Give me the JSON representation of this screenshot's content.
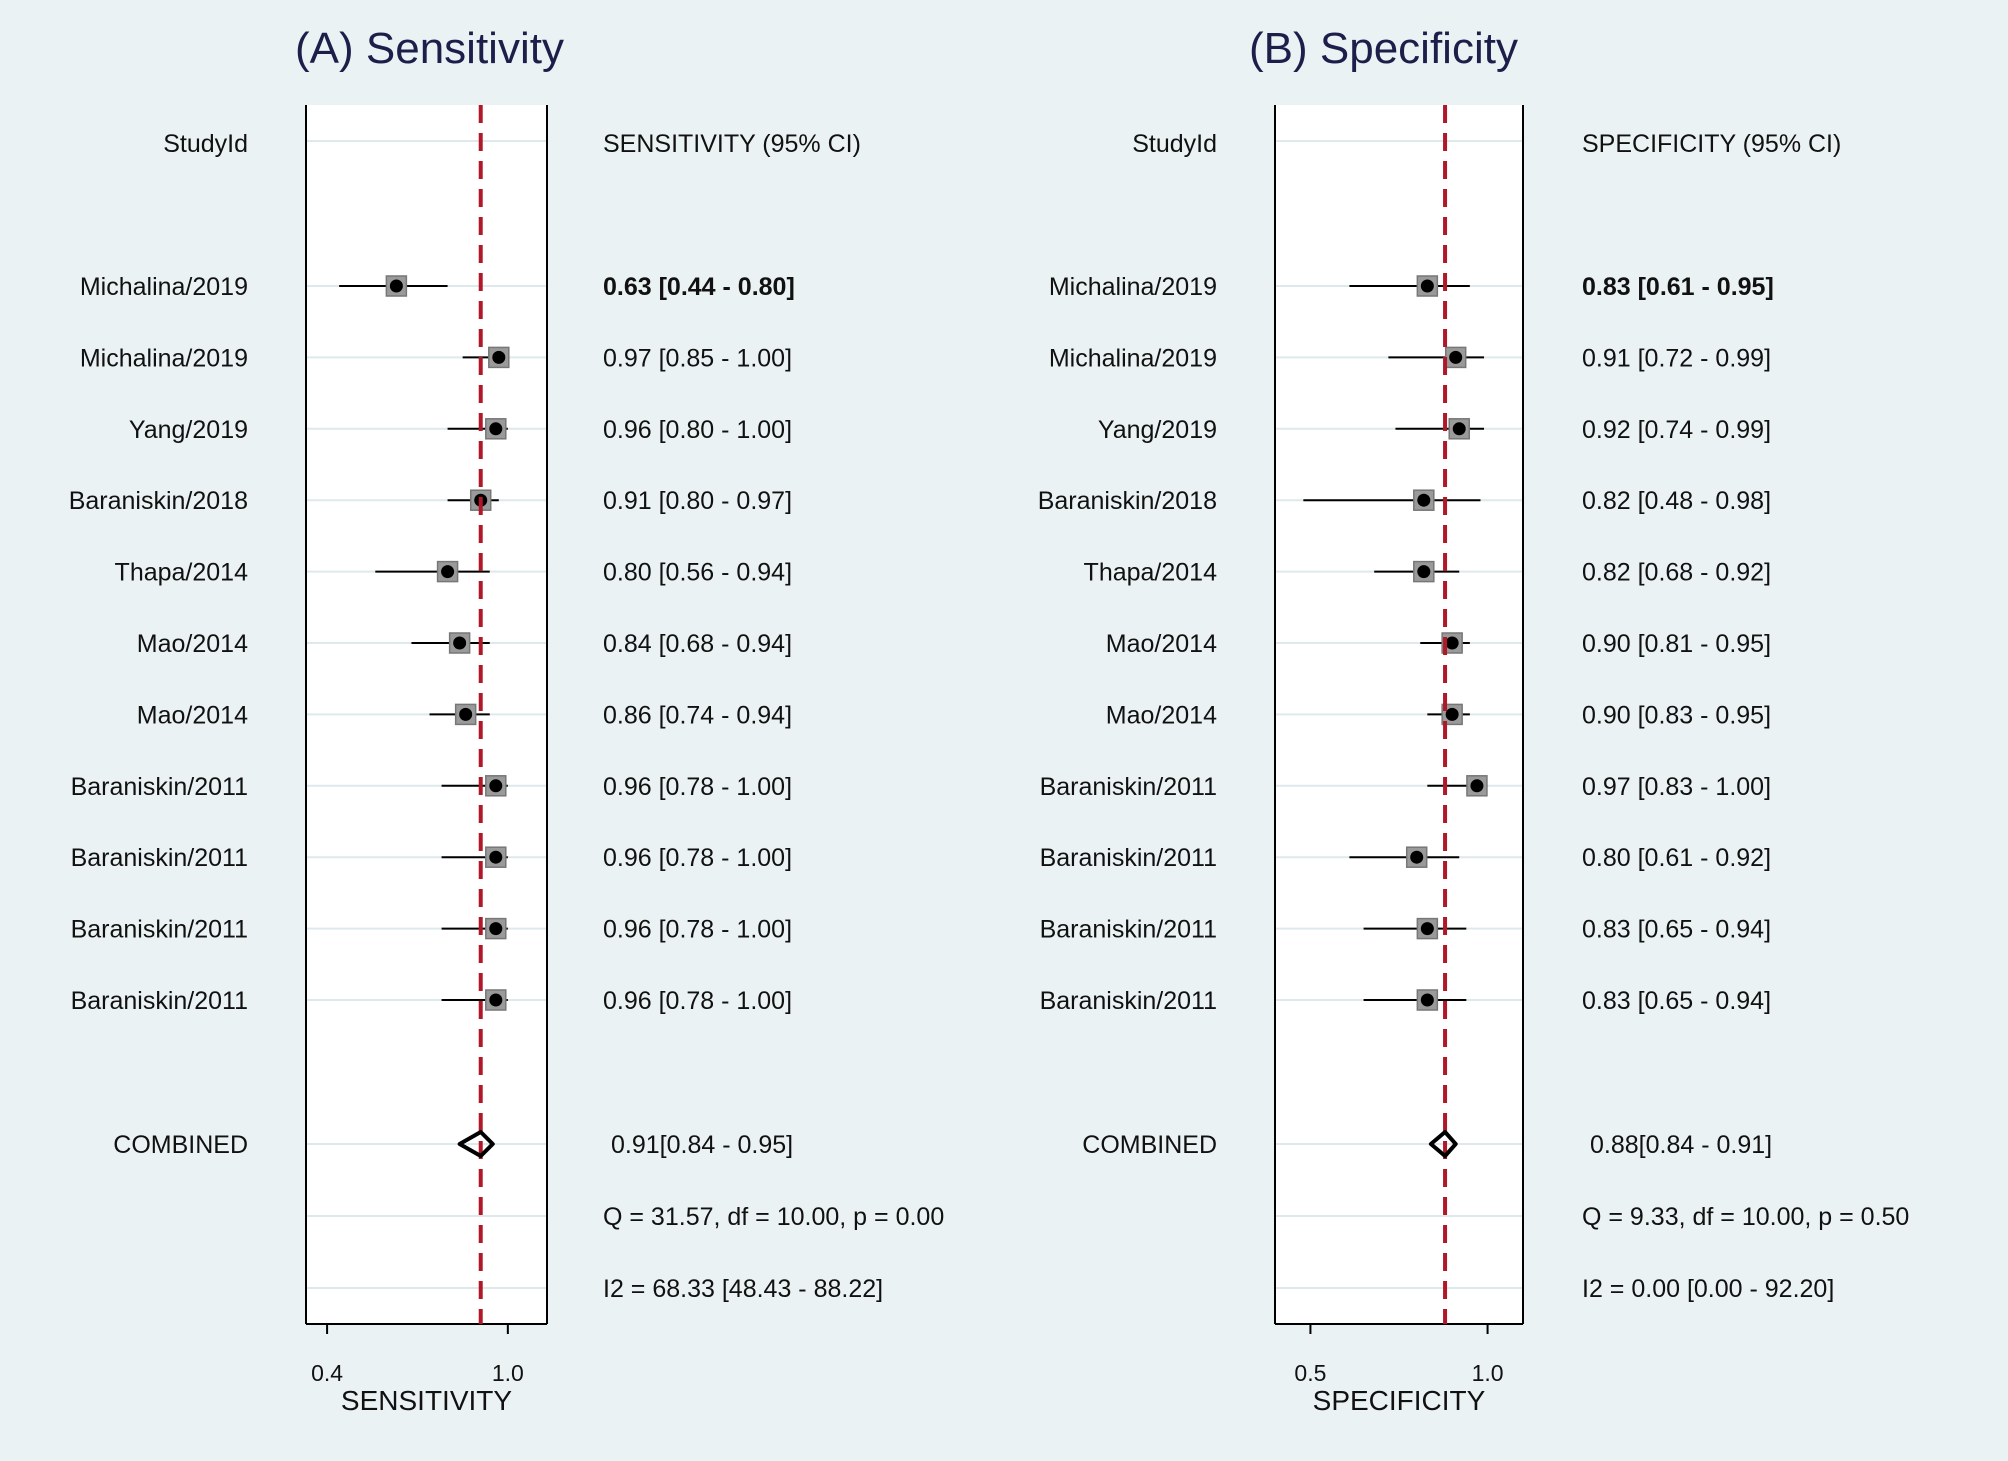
{
  "chart_data": [
    {
      "type": "forest",
      "title": "(A) Sensitivity",
      "column_header_study": "StudyId",
      "column_header_value": "SENSITIVITY (95% CI)",
      "xlabel": "SENSITIVITY",
      "xticks": [
        "0.4",
        "1.0"
      ],
      "xlim": [
        0.33,
        1.13
      ],
      "pooled_line": 0.91,
      "studies": [
        {
          "label": "Michalina/2019",
          "est": 0.63,
          "lo": 0.44,
          "hi": 0.8,
          "text": "0.63 [0.44 - 0.80]",
          "bold": true
        },
        {
          "label": "Michalina/2019",
          "est": 0.97,
          "lo": 0.85,
          "hi": 1.0,
          "text": "0.97 [0.85 - 1.00]"
        },
        {
          "label": "Yang/2019",
          "est": 0.96,
          "lo": 0.8,
          "hi": 1.0,
          "text": "0.96 [0.80 - 1.00]"
        },
        {
          "label": "Baraniskin/2018",
          "est": 0.91,
          "lo": 0.8,
          "hi": 0.97,
          "text": "0.91 [0.80 - 0.97]"
        },
        {
          "label": "Thapa/2014",
          "est": 0.8,
          "lo": 0.56,
          "hi": 0.94,
          "text": "0.80 [0.56 - 0.94]"
        },
        {
          "label": "Mao/2014",
          "est": 0.84,
          "lo": 0.68,
          "hi": 0.94,
          "text": "0.84 [0.68 - 0.94]"
        },
        {
          "label": "Mao/2014",
          "est": 0.86,
          "lo": 0.74,
          "hi": 0.94,
          "text": "0.86 [0.74 - 0.94]"
        },
        {
          "label": "Baraniskin/2011",
          "est": 0.96,
          "lo": 0.78,
          "hi": 1.0,
          "text": "0.96 [0.78 - 1.00]"
        },
        {
          "label": "Baraniskin/2011",
          "est": 0.96,
          "lo": 0.78,
          "hi": 1.0,
          "text": "0.96 [0.78 - 1.00]"
        },
        {
          "label": "Baraniskin/2011",
          "est": 0.96,
          "lo": 0.78,
          "hi": 1.0,
          "text": "0.96 [0.78 - 1.00]"
        },
        {
          "label": "Baraniskin/2011",
          "est": 0.96,
          "lo": 0.78,
          "hi": 1.0,
          "text": "0.96 [0.78 - 1.00]"
        }
      ],
      "combined": {
        "label": "COMBINED",
        "est": 0.91,
        "lo": 0.84,
        "hi": 0.95,
        "text": "0.91[0.84 - 0.95]"
      },
      "stats": [
        "Q = 31.57, df = 10.00, p =  0.00",
        "I2 = 68.33 [48.43 - 88.22]"
      ]
    },
    {
      "type": "forest",
      "title": "(B) Specificity",
      "column_header_study": "StudyId",
      "column_header_value": "SPECIFICITY (95% CI)",
      "xlabel": "SPECIFICITY",
      "xticks": [
        "0.5",
        "1.0"
      ],
      "xlim": [
        0.4,
        1.1
      ],
      "pooled_line": 0.88,
      "studies": [
        {
          "label": "Michalina/2019",
          "est": 0.83,
          "lo": 0.61,
          "hi": 0.95,
          "text": "0.83 [0.61 - 0.95]",
          "bold": true
        },
        {
          "label": "Michalina/2019",
          "est": 0.91,
          "lo": 0.72,
          "hi": 0.99,
          "text": "0.91 [0.72 - 0.99]"
        },
        {
          "label": "Yang/2019",
          "est": 0.92,
          "lo": 0.74,
          "hi": 0.99,
          "text": "0.92 [0.74 - 0.99]"
        },
        {
          "label": "Baraniskin/2018",
          "est": 0.82,
          "lo": 0.48,
          "hi": 0.98,
          "text": "0.82 [0.48 - 0.98]"
        },
        {
          "label": "Thapa/2014",
          "est": 0.82,
          "lo": 0.68,
          "hi": 0.92,
          "text": "0.82 [0.68 - 0.92]"
        },
        {
          "label": "Mao/2014",
          "est": 0.9,
          "lo": 0.81,
          "hi": 0.95,
          "text": "0.90 [0.81 - 0.95]"
        },
        {
          "label": "Mao/2014",
          "est": 0.9,
          "lo": 0.83,
          "hi": 0.95,
          "text": "0.90 [0.83 - 0.95]"
        },
        {
          "label": "Baraniskin/2011",
          "est": 0.97,
          "lo": 0.83,
          "hi": 1.0,
          "text": "0.97 [0.83 - 1.00]"
        },
        {
          "label": "Baraniskin/2011",
          "est": 0.8,
          "lo": 0.61,
          "hi": 0.92,
          "text": "0.80 [0.61 - 0.92]"
        },
        {
          "label": "Baraniskin/2011",
          "est": 0.83,
          "lo": 0.65,
          "hi": 0.94,
          "text": "0.83 [0.65 - 0.94]"
        },
        {
          "label": "Baraniskin/2011",
          "est": 0.83,
          "lo": 0.65,
          "hi": 0.94,
          "text": "0.83 [0.65 - 0.94]"
        }
      ],
      "combined": {
        "label": "COMBINED",
        "est": 0.88,
        "lo": 0.84,
        "hi": 0.91,
        "text": "0.88[0.84 - 0.91]"
      },
      "stats": [
        "Q =  9.33, df = 10.00, p =  0.50",
        "I2 = 0.00 [0.00 - 92.20]"
      ]
    }
  ],
  "colors": {
    "background": "#eaf2f3",
    "plot_background": "#ffffff",
    "gridline": "#dde9ec",
    "reference_line": "#b0182a",
    "box_fill": "#9a9a9a",
    "title": "#1d1f4a"
  }
}
